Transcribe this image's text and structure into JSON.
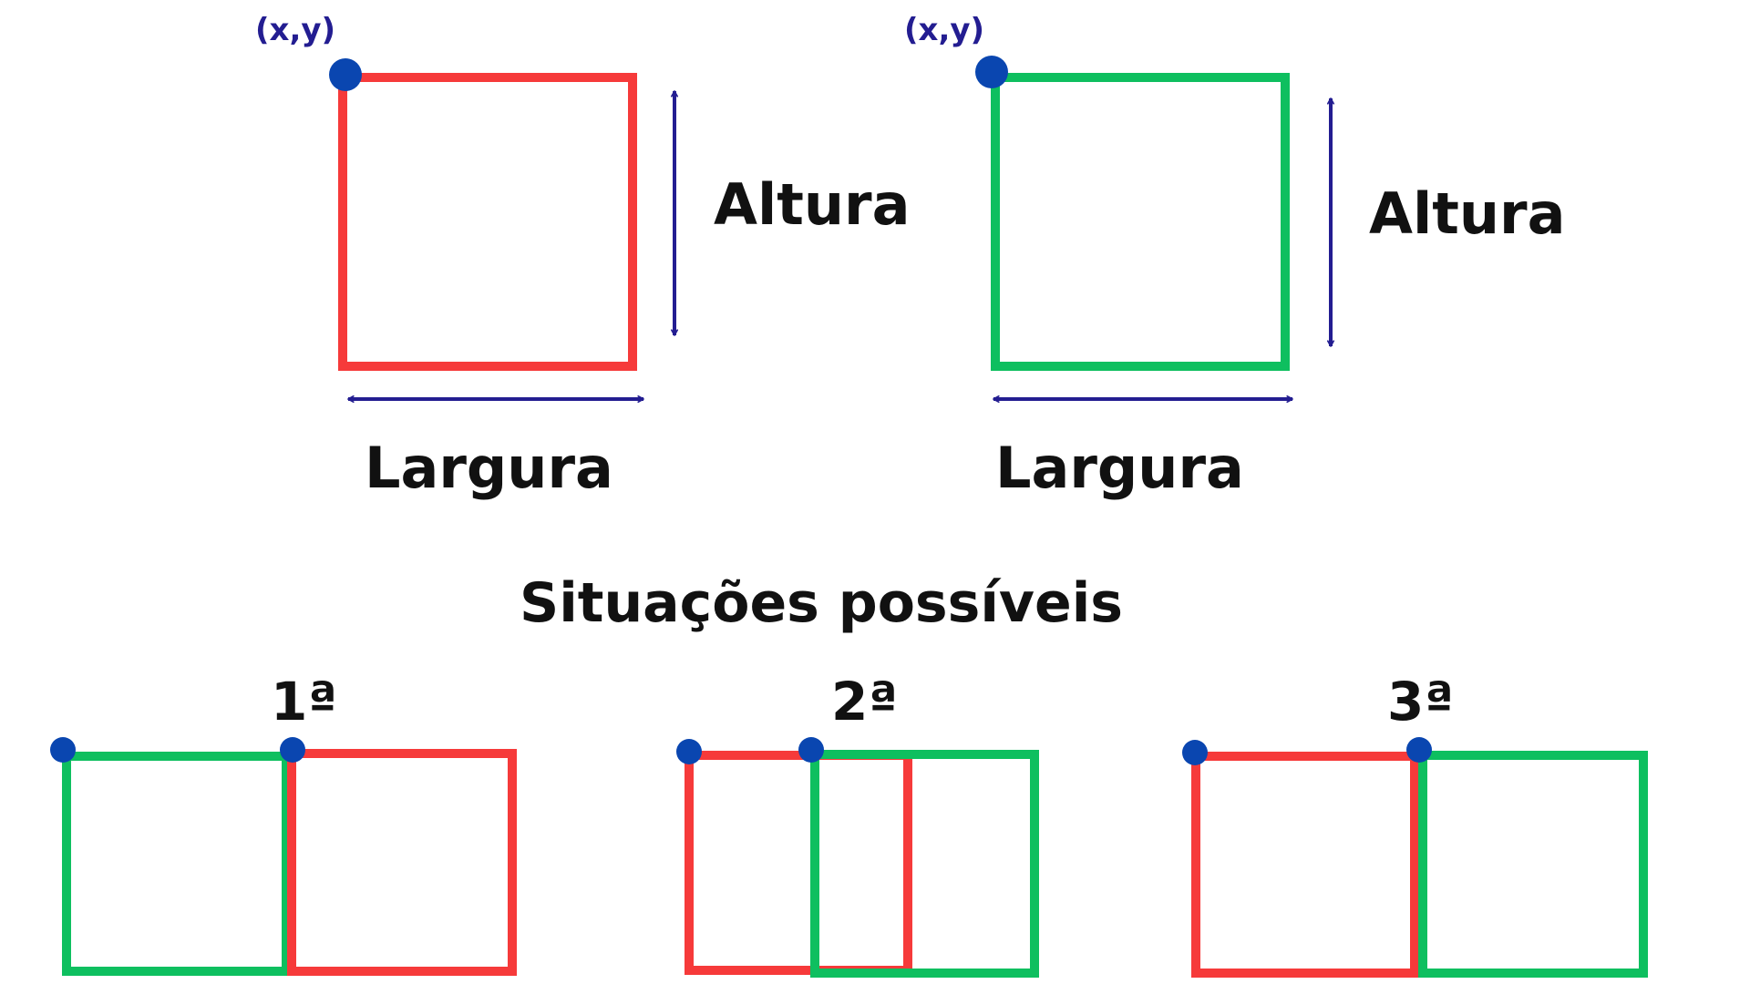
{
  "colors": {
    "red": "#f63a3a",
    "green": "#0ebf5f",
    "point": "#0a46b0",
    "arrow": "#231d91",
    "text": "#111111"
  },
  "top": {
    "left": {
      "coord_label": "(x,y)",
      "height_label": "Altura",
      "width_label": "Largura",
      "box_color": "red"
    },
    "right": {
      "coord_label": "(x,y)",
      "height_label": "Altura",
      "width_label": "Largura",
      "box_color": "green"
    }
  },
  "section_title": "Situações possíveis",
  "situations": [
    {
      "label": "1ª"
    },
    {
      "label": "2ª"
    },
    {
      "label": "3ª"
    }
  ]
}
